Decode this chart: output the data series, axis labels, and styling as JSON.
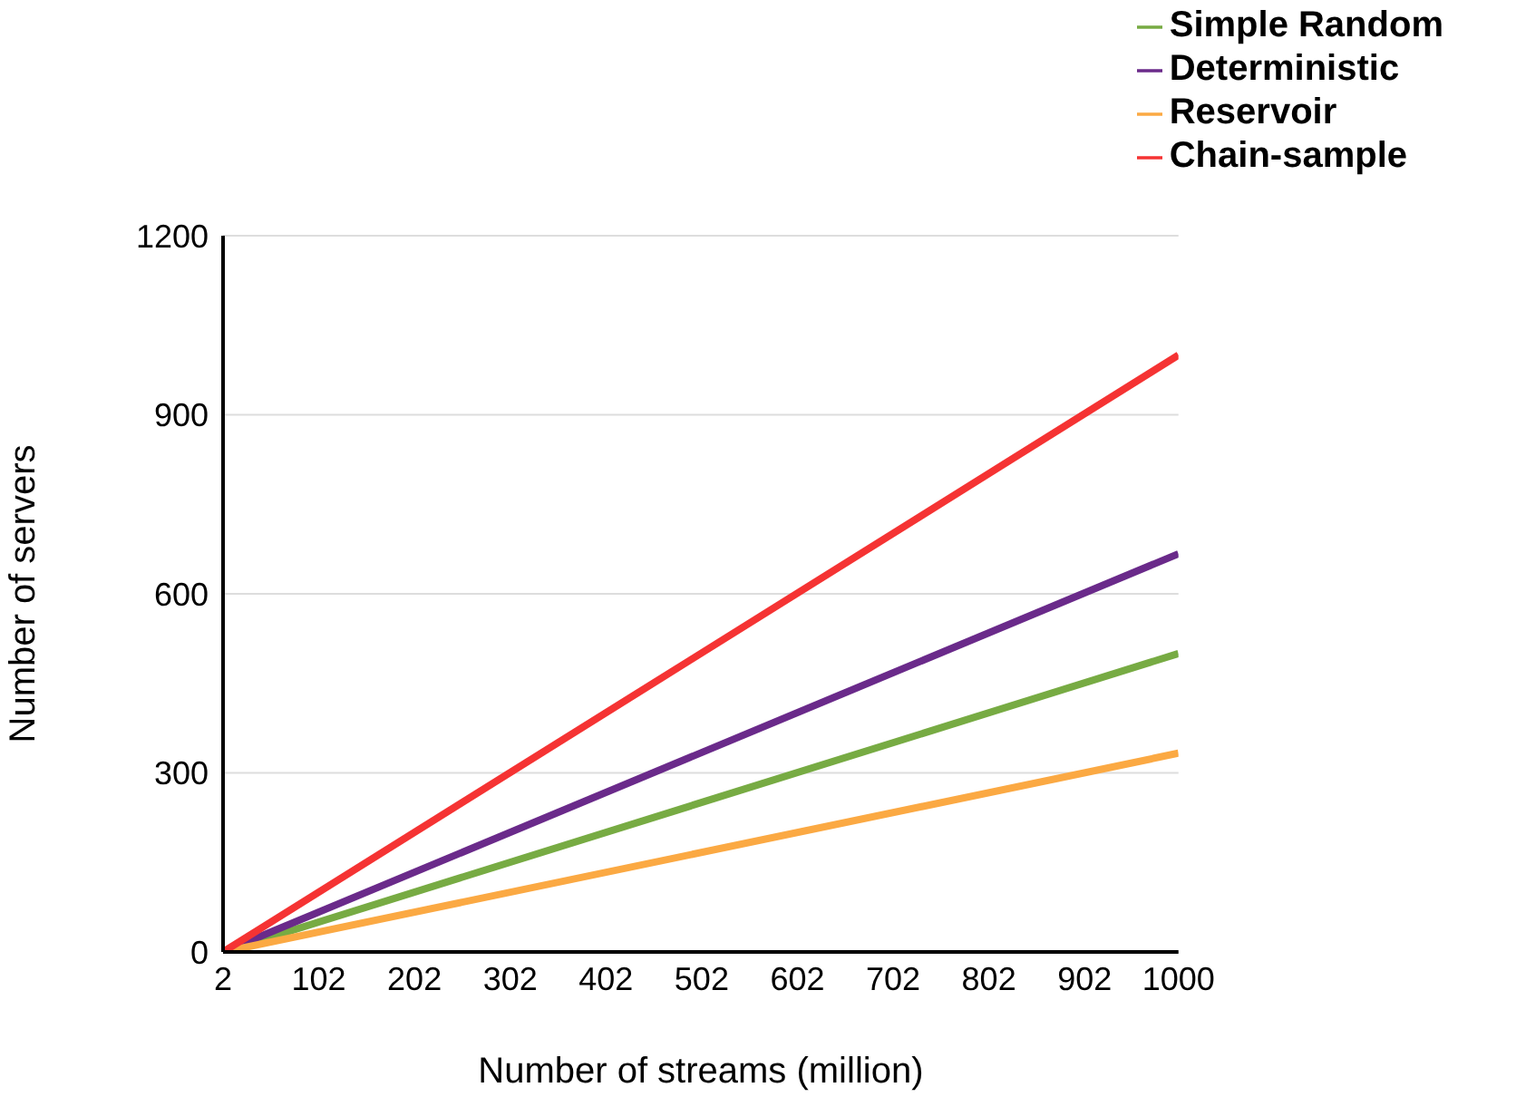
{
  "chart_data": {
    "type": "line",
    "xlabel": "Number of streams (million)",
    "ylabel": "Number of servers",
    "x": [
      2,
      1000
    ],
    "xlim": [
      2,
      1000
    ],
    "xticks": [
      2,
      102,
      202,
      302,
      402,
      502,
      602,
      702,
      802,
      902,
      1000
    ],
    "ylim": [
      0,
      1200
    ],
    "yticks": [
      0,
      300,
      600,
      900,
      1200
    ],
    "grid": "y",
    "legend": "top right",
    "marker": "none",
    "line_style": "solid",
    "series": [
      {
        "name": "Simple Random",
        "color": "#77ab43",
        "values": [
          0,
          500
        ]
      },
      {
        "name": "Deterministic",
        "color": "#6a2a8a",
        "values": [
          0,
          667
        ]
      },
      {
        "name": "Reservoir",
        "color": "#fba943",
        "values": [
          0,
          333
        ]
      },
      {
        "name": "Chain-sample",
        "color": "#f53333",
        "values": [
          0,
          1000
        ]
      }
    ]
  }
}
